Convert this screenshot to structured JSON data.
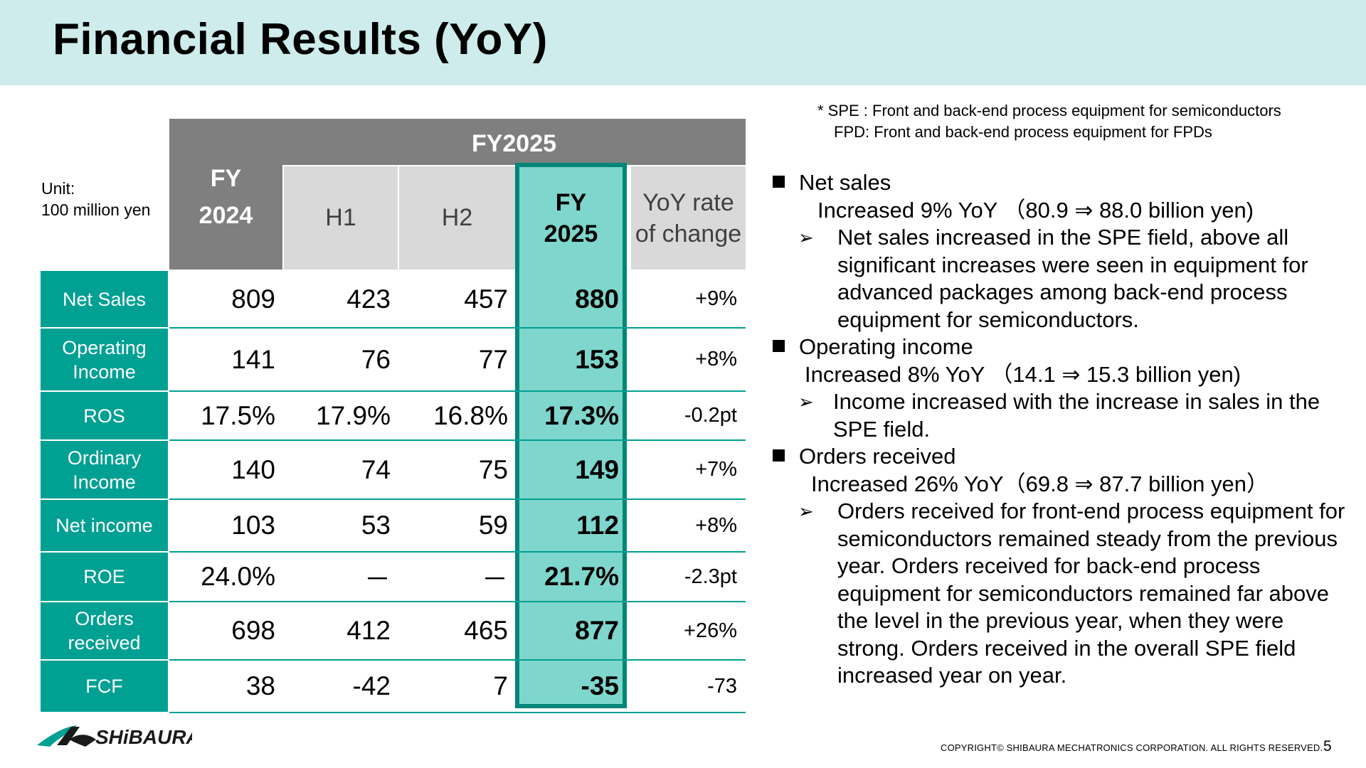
{
  "title": "Financial Results (YoY)",
  "unit_label_line1": "Unit:",
  "unit_label_line2": "100 million yen",
  "table": {
    "fy2024_line1": "FY",
    "fy2024_line2": "2024",
    "fy2025_header": "FY2025",
    "h1": "H1",
    "h2": "H2",
    "fy2025_col_line1": "FY",
    "fy2025_col_line2": "2025",
    "yoy_line1": "YoY rate",
    "yoy_line2": "of change",
    "rows": [
      {
        "label": "Net Sales",
        "fy2024": "809",
        "h1": "423",
        "h2": "457",
        "fy2025": "880",
        "yoy": "+9%"
      },
      {
        "label": "Operating Income",
        "fy2024": "141",
        "h1": "76",
        "h2": "77",
        "fy2025": "153",
        "yoy": "+8%"
      },
      {
        "label": "ROS",
        "fy2024": "17.5%",
        "h1": "17.9%",
        "h2": "16.8%",
        "fy2025": "17.3%",
        "yoy": "-0.2pt"
      },
      {
        "label": "Ordinary Income",
        "fy2024": "140",
        "h1": "74",
        "h2": "75",
        "fy2025": "149",
        "yoy": "+7%"
      },
      {
        "label": "Net income",
        "fy2024": "103",
        "h1": "53",
        "h2": "59",
        "fy2025": "112",
        "yoy": "+8%"
      },
      {
        "label": "ROE",
        "fy2024": "24.0%",
        "h1": "－",
        "h2": "－",
        "fy2025": "21.7%",
        "yoy": "-2.3pt"
      },
      {
        "label": "Orders received",
        "fy2024": "698",
        "h1": "412",
        "h2": "465",
        "fy2025": "877",
        "yoy": "+26%"
      },
      {
        "label": "FCF",
        "fy2024": "38",
        "h1": "-42",
        "h2": "7",
        "fy2025": "-35",
        "yoy": "-73"
      }
    ]
  },
  "footnote": {
    "line1": "* SPE : Front and back-end process equipment for semiconductors",
    "line2": "FPD: Front and back-end process equipment for FPDs"
  },
  "notes": {
    "net_sales_head": "Net sales",
    "net_sales_sub": "Increased 9% YoY （80.9 ⇒ 88.0 billion yen)",
    "net_sales_detail": "Net sales increased in the SPE field, above all significant increases were seen in equipment for advanced packages among back-end process equipment for semiconductors.",
    "op_head": "Operating income",
    "op_sub": "Increased 8% YoY （14.1 ⇒ 15.3 billion yen)",
    "op_detail": "Income increased with the increase in sales in the SPE field.",
    "orders_head": "Orders received",
    "orders_sub": "Increased 26% YoY（69.8 ⇒ 87.7 billion yen）",
    "orders_detail": "Orders received for front-end process equipment for semiconductors remained steady from the previous year. Orders received for back-end process equipment for semiconductors remained far above the level in the previous year, when they were strong. Orders received in the overall SPE field increased year on year."
  },
  "copyright": "COPYRIGHT© SHIBAURA MECHATRONICS CORPORATION. ALL RIGHTS RESERVED.",
  "page_number": "5",
  "logo_text": "SHiBAURA",
  "colors": {
    "header_bg": "#cdeceb",
    "teal": "#00a093",
    "teal_light": "#7fd6cc",
    "teal_dark": "#008679",
    "gray_header": "#7f7f7f",
    "gray_sub": "#d9d9d9"
  }
}
